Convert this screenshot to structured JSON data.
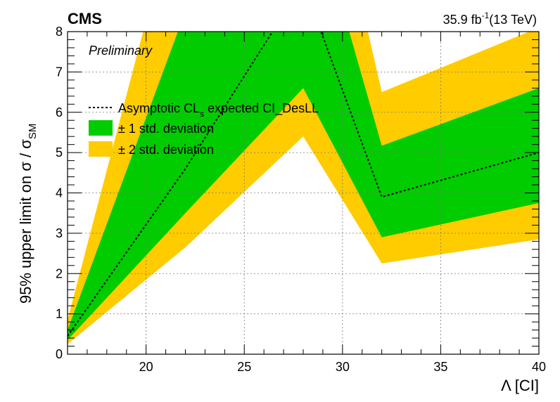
{
  "header": {
    "experiment": "CMS",
    "status": "Preliminary",
    "lumi_value": "35.9 fb",
    "lumi_exp": "-1",
    "energy": "(13 TeV)"
  },
  "legend": {
    "expected_pre": "Asymptotic CL",
    "expected_sub": "s",
    "expected_post": " expected CI_DesLL",
    "one_sigma": "± 1 std. deviation",
    "two_sigma": "± 2 std. deviation"
  },
  "axes": {
    "xlabel": "Λ [CI]",
    "ylabel_main": "95% upper limit on σ / σ",
    "ylabel_sub": "SM"
  },
  "colors": {
    "one_sigma": "#00cc00",
    "two_sigma": "#ffcc00",
    "expected": "#000000",
    "grid": "#777777"
  },
  "chart_data": {
    "type": "line",
    "xlim": [
      16,
      40
    ],
    "ylim": [
      0,
      8
    ],
    "xticks": [
      20,
      25,
      30,
      35,
      40
    ],
    "yticks": [
      0,
      1,
      2,
      3,
      4,
      5,
      6,
      7,
      8
    ],
    "grid": true,
    "legend_position": "upper-left",
    "x": [
      16,
      22,
      28,
      32,
      40
    ],
    "series": [
      {
        "name": "Asymptotic CLs expected CI_DesLL",
        "values": [
          0.45,
          4.6,
          9.2,
          3.9,
          5.0
        ]
      },
      {
        "name": "± 1 std. deviation",
        "upper": [
          0.6,
          8.5,
          12.0,
          5.17,
          6.6
        ],
        "lower": [
          0.35,
          3.5,
          6.6,
          2.9,
          3.75
        ]
      },
      {
        "name": "± 2 std. deviation",
        "upper": [
          0.85,
          12.0,
          15.0,
          6.5,
          8.1
        ],
        "lower": [
          0.25,
          2.65,
          5.4,
          2.25,
          2.85
        ]
      }
    ]
  }
}
